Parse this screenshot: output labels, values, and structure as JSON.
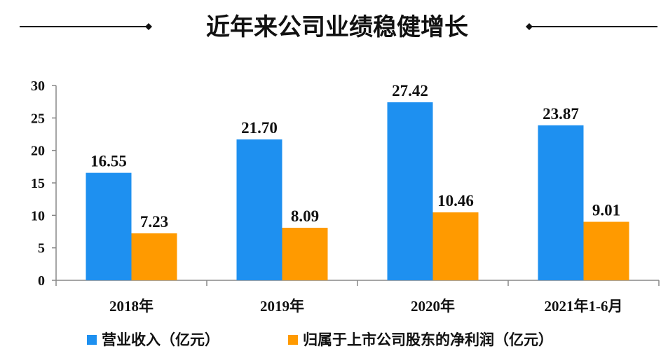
{
  "chart_data": {
    "type": "bar",
    "title": "近年来公司业绩稳健增长",
    "categories": [
      "2018年",
      "2019年",
      "2020年",
      "2021年1-6月"
    ],
    "series": [
      {
        "name": "营业收入（亿元）",
        "values": [
          16.55,
          21.7,
          27.42,
          23.87
        ],
        "value_labels": [
          "16.55",
          "21.70",
          "27.42",
          "23.87"
        ],
        "color": "#1E90F0"
      },
      {
        "name": "归属于上市公司股东的净利润（亿元）",
        "values": [
          7.23,
          8.09,
          10.46,
          9.01
        ],
        "value_labels": [
          "7.23",
          "8.09",
          "10.46",
          "9.01"
        ],
        "color": "#FF9A00"
      }
    ],
    "ylim": [
      0,
      30
    ],
    "yticks": [
      "0",
      "5",
      "10",
      "15",
      "20",
      "25",
      "30"
    ],
    "grid": false,
    "legend_position": "bottom"
  }
}
